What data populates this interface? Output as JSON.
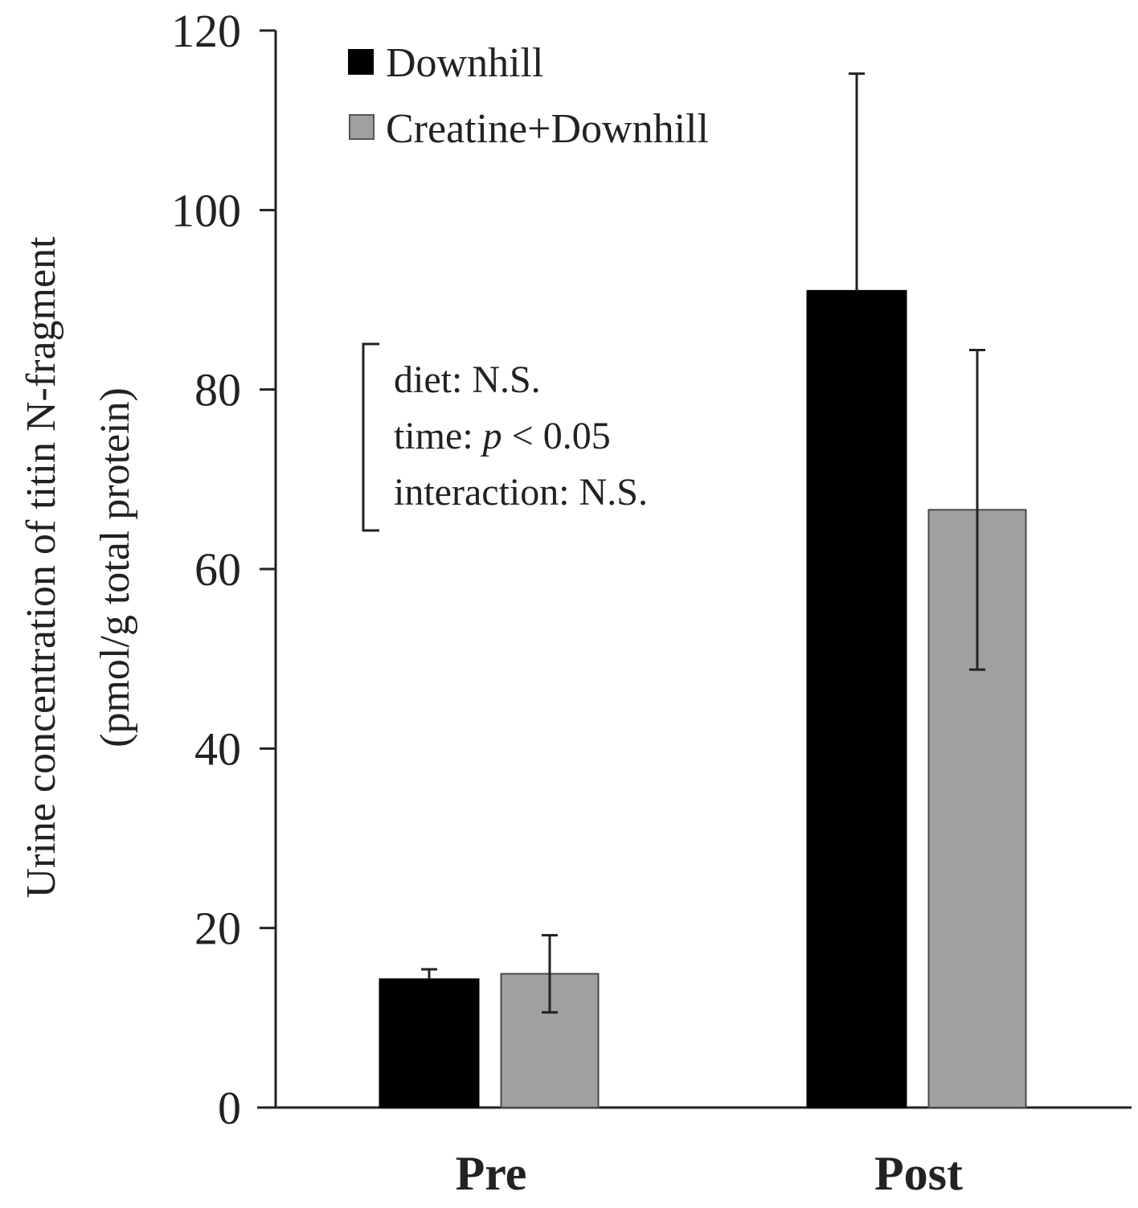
{
  "chart_data": {
    "type": "bar",
    "categories": [
      "Pre",
      "Post"
    ],
    "series": [
      {
        "name": "Downhill",
        "color": "#000000",
        "values": [
          14.3,
          91
        ],
        "errors": [
          1.1,
          24.2
        ]
      },
      {
        "name": "Creatine+Downhill",
        "color": "#a0a0a0",
        "values": [
          14.9,
          66.6
        ],
        "errors": [
          4.3,
          17.8
        ]
      }
    ],
    "title": "",
    "xlabel": "",
    "ylabel_line1": "Urine concentration of titin N-fragment",
    "ylabel_line2": "(pmol/g total protein)",
    "ylim": [
      0,
      120
    ],
    "yticks": [
      0,
      20,
      40,
      60,
      80,
      100,
      120
    ],
    "grid": false,
    "legend": "top-left",
    "annotation": {
      "line1": "diet: N.S.",
      "line2_prefix": "time: ",
      "line2_italic": "p",
      "line2_suffix": " < 0.05",
      "line3": "interaction: N.S."
    }
  }
}
